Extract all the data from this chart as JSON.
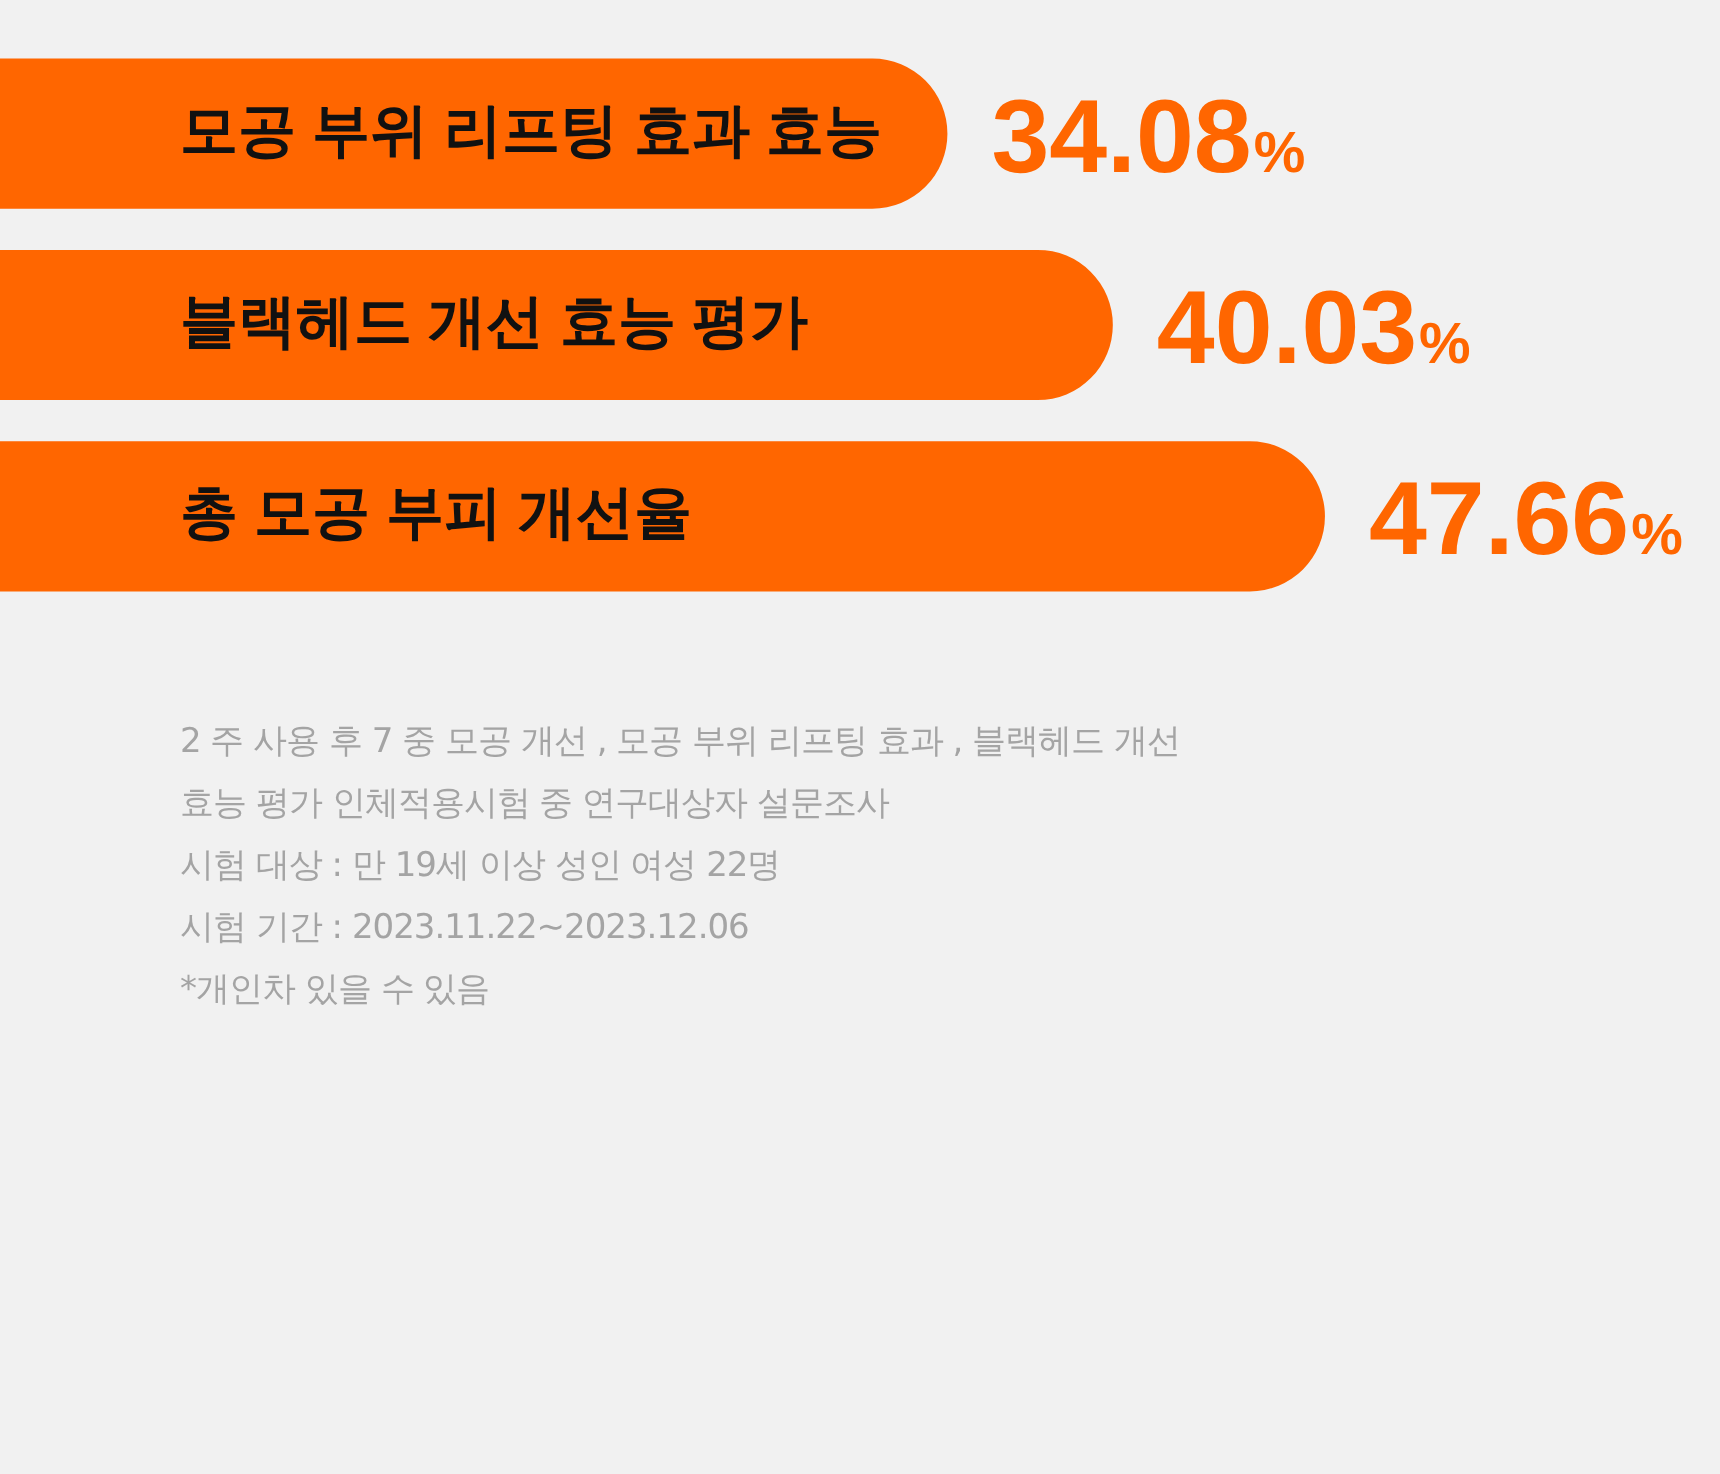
{
  "chart_data": {
    "type": "bar",
    "orientation": "horizontal",
    "categories": [
      "모공 부위 리프팅 효과 효능",
      "블랙헤드 개선 효능 평가",
      "총 모공 부피 개선율"
    ],
    "values": [
      34.08,
      40.03,
      47.66
    ],
    "value_labels": [
      "34.08%",
      "40.03%",
      "47.66%"
    ],
    "color": "#ff6600",
    "tick_labels": "y",
    "annotations": [
      "2 주 사용 후 7 중 모공 개선 , 모공 부위 리프팅 효과 , 블랙헤드 개선 효능 평가 인체적용시험 중 연구대상자 설문조사",
      "시험 대상 : 만 19세 이상 성인 여성 22명",
      "시험 기간 : 2023.11.22~2023.12.06",
      "*개인차 있을 수 있음"
    ]
  }
}
